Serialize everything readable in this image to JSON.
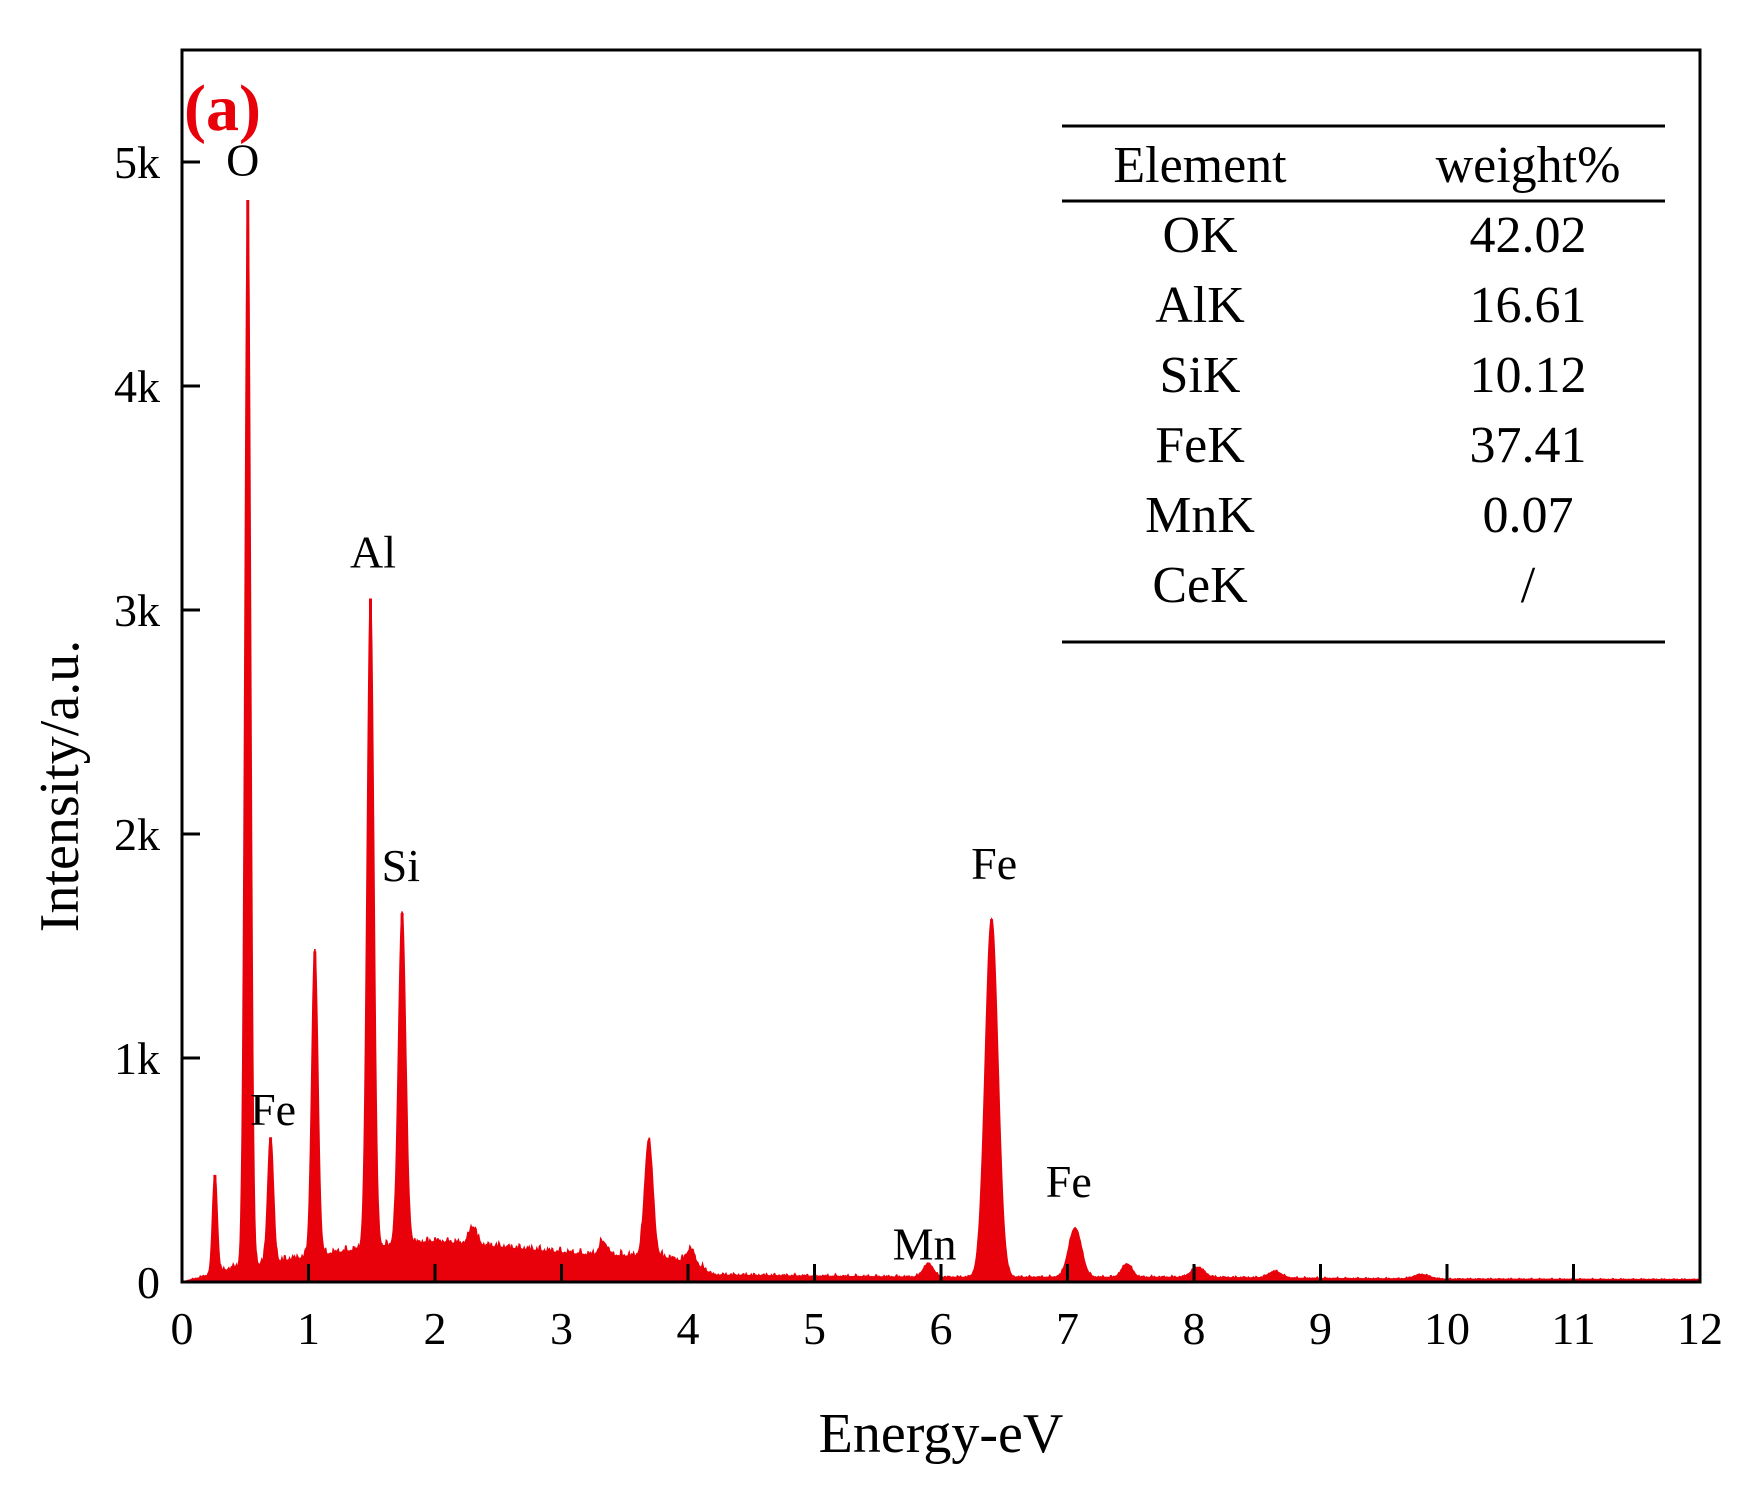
{
  "chart_data": {
    "type": "area",
    "panel_label": "(a)",
    "xlabel": "Energy-eV",
    "ylabel": "Intensity/a.u.",
    "xlim": [
      0,
      12
    ],
    "ylim": [
      0,
      5500
    ],
    "x_ticks": [
      {
        "value": 0,
        "label": "0"
      },
      {
        "value": 1,
        "label": "1"
      },
      {
        "value": 2,
        "label": "2"
      },
      {
        "value": 3,
        "label": "3"
      },
      {
        "value": 4,
        "label": "4"
      },
      {
        "value": 5,
        "label": "5"
      },
      {
        "value": 6,
        "label": "6"
      },
      {
        "value": 7,
        "label": "7"
      },
      {
        "value": 8,
        "label": "8"
      },
      {
        "value": 9,
        "label": "9"
      },
      {
        "value": 10,
        "label": "10"
      },
      {
        "value": 11,
        "label": "11"
      },
      {
        "value": 12,
        "label": "12"
      }
    ],
    "y_ticks": [
      {
        "value": 0,
        "label": "0"
      },
      {
        "value": 1000,
        "label": "1k"
      },
      {
        "value": 2000,
        "label": "2k"
      },
      {
        "value": 3000,
        "label": "3k"
      },
      {
        "value": 4000,
        "label": "4k"
      },
      {
        "value": 5000,
        "label": "5k"
      }
    ],
    "series_color": "#e8000b",
    "baseline": [
      [
        0,
        0
      ],
      [
        0.15,
        20
      ],
      [
        0.4,
        60
      ],
      [
        1.1,
        120
      ],
      [
        1.6,
        160
      ],
      [
        2.0,
        180
      ],
      [
        2.6,
        150
      ],
      [
        3.2,
        120
      ],
      [
        3.8,
        110
      ],
      [
        4.05,
        80
      ],
      [
        4.2,
        30
      ],
      [
        5.0,
        25
      ],
      [
        6.0,
        20
      ],
      [
        7.0,
        20
      ],
      [
        8.0,
        20
      ],
      [
        9.0,
        15
      ],
      [
        10.0,
        12
      ],
      [
        12.0,
        10
      ]
    ],
    "peaks": [
      {
        "x": 0.26,
        "height": 440,
        "width": 0.018
      },
      {
        "x": 0.52,
        "height": 4760,
        "width": 0.022
      },
      {
        "x": 0.7,
        "height": 560,
        "width": 0.022
      },
      {
        "x": 1.05,
        "height": 1360,
        "width": 0.024
      },
      {
        "x": 1.49,
        "height": 2900,
        "width": 0.026
      },
      {
        "x": 1.74,
        "height": 1480,
        "width": 0.028
      },
      {
        "x": 2.3,
        "height": 80,
        "width": 0.03
      },
      {
        "x": 3.33,
        "height": 60,
        "width": 0.03
      },
      {
        "x": 3.69,
        "height": 520,
        "width": 0.032
      },
      {
        "x": 4.02,
        "height": 60,
        "width": 0.03
      },
      {
        "x": 5.9,
        "height": 60,
        "width": 0.04
      },
      {
        "x": 6.4,
        "height": 1600,
        "width": 0.05
      },
      {
        "x": 7.06,
        "height": 220,
        "width": 0.05
      },
      {
        "x": 7.47,
        "height": 60,
        "width": 0.04
      },
      {
        "x": 8.03,
        "height": 45,
        "width": 0.05
      },
      {
        "x": 8.64,
        "height": 30,
        "width": 0.05
      },
      {
        "x": 9.8,
        "height": 20,
        "width": 0.06
      }
    ],
    "annotations": [
      {
        "text": "O",
        "x": 0.48,
        "y": 4940
      },
      {
        "text": "Al",
        "x": 1.51,
        "y": 3190
      },
      {
        "text": "Si",
        "x": 1.73,
        "y": 1790
      },
      {
        "text": "Fe",
        "x": 0.72,
        "y": 700
      },
      {
        "text": "Fe",
        "x": 6.42,
        "y": 1800
      },
      {
        "text": "Mn",
        "x": 5.87,
        "y": 100
      },
      {
        "text": "Fe",
        "x": 7.01,
        "y": 380
      }
    ],
    "table": {
      "headers": [
        "Element",
        "weight%"
      ],
      "rows": [
        [
          "OK",
          "42.02"
        ],
        [
          "AlK",
          "16.61"
        ],
        [
          "SiK",
          "10.12"
        ],
        [
          "FeK",
          "37.41"
        ],
        [
          "MnK",
          "0.07"
        ],
        [
          "CeK",
          "/"
        ]
      ]
    }
  }
}
